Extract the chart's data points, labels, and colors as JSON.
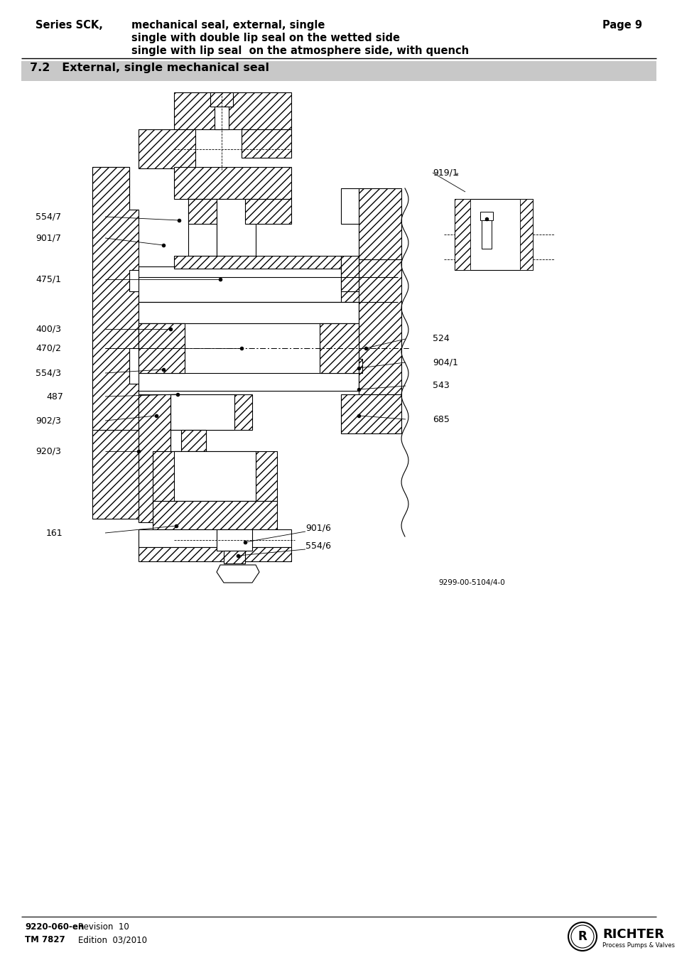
{
  "page_title_bold": "Series SCK,",
  "page_title_text1": "mechanical seal, external, single",
  "page_title_text2": "single with double lip seal on the wetted side",
  "page_title_text3": "single with lip seal  on the atmosphere side, with quench",
  "page_number": "Page 9",
  "section_title": "7.2   External, single mechanical seal",
  "section_bg_color": "#c8c8c8",
  "footer_left_bold": "9220-060-en",
  "footer_left1": "Revision  10",
  "footer_left2_bold": "TM 7827",
  "footer_left2": "Edition  03/2010",
  "footer_logo_text": "RICHTER",
  "footer_logo_sub": "Process Pumps & Valves",
  "drawing_id": "9299-00-5104/4-0",
  "bg_color": "#ffffff",
  "hatch_color": "#000000",
  "title_fontsize": 10.5,
  "label_fontsize": 9.0,
  "section_fontsize": 11.5
}
